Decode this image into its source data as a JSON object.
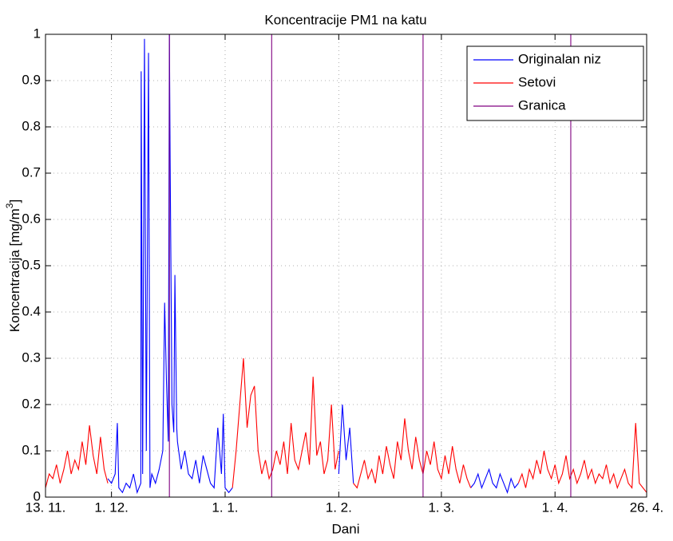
{
  "chart_data": {
    "type": "line",
    "title": "Koncentracije PM1 na katu",
    "x_label": "Dani",
    "y_label": {
      "text": "Koncentracija [mg/m",
      "sup": "3",
      "end": "]"
    },
    "xlim": [
      0,
      164
    ],
    "ylim": [
      0,
      1
    ],
    "xticks": [
      {
        "value": 0,
        "label": "13. 11."
      },
      {
        "value": 18,
        "label": "1. 12."
      },
      {
        "value": 49,
        "label": "1. 1."
      },
      {
        "value": 80,
        "label": "1. 2."
      },
      {
        "value": 108,
        "label": "1. 3."
      },
      {
        "value": 139,
        "label": "1. 4."
      },
      {
        "value": 164,
        "label": "26. 4."
      }
    ],
    "yticks": [
      0,
      0.1,
      0.2,
      0.3,
      0.4,
      0.5,
      0.6,
      0.7,
      0.8,
      0.9,
      1
    ],
    "grid": true,
    "legend": "top-right",
    "series": [
      {
        "name": "Originalan niz",
        "color": "#0000ff",
        "x": [
          17,
          18,
          19,
          19.6,
          20,
          21,
          22,
          23,
          24,
          25,
          26,
          26.1,
          26.5,
          27,
          27.5,
          28.1,
          28.5,
          29,
          30,
          31,
          32,
          32.5,
          33,
          33.5,
          33.8,
          34,
          34.5,
          35,
          35.3,
          35.8,
          36,
          37,
          38,
          39,
          40,
          41,
          42,
          43,
          44,
          45,
          46,
          47,
          48,
          48.5,
          49,
          50,
          51,
          null,
          80,
          81,
          82,
          83,
          84,
          null,
          116,
          117,
          118,
          119,
          120,
          121,
          122,
          123,
          124,
          125,
          126,
          127,
          128,
          129
        ],
        "values": [
          0.04,
          0.03,
          0.05,
          0.16,
          0.02,
          0.01,
          0.03,
          0.02,
          0.05,
          0.01,
          0.03,
          0.92,
          0.05,
          0.99,
          0.1,
          0.96,
          0.02,
          0.05,
          0.03,
          0.06,
          0.1,
          0.42,
          0.25,
          0.12,
          1,
          0.73,
          0.2,
          0.14,
          0.48,
          0.15,
          0.12,
          0.06,
          0.1,
          0.05,
          0.04,
          0.08,
          0.03,
          0.09,
          0.06,
          0.03,
          0.02,
          0.15,
          0.05,
          0.18,
          0.02,
          0.01,
          0.02,
          null,
          0.05,
          0.2,
          0.08,
          0.15,
          0.03,
          null,
          0.02,
          0.03,
          0.05,
          0.02,
          0.04,
          0.06,
          0.03,
          0.02,
          0.05,
          0.03,
          0.01,
          0.04,
          0.02,
          0.03
        ]
      },
      {
        "name": "Setovi",
        "color": "#ff0000",
        "x": [
          0,
          1,
          2,
          3,
          4,
          5,
          6,
          7,
          8,
          9,
          10,
          11,
          12,
          13,
          14,
          15,
          16,
          17,
          null,
          51,
          52,
          53,
          54,
          55,
          56,
          57,
          58,
          59,
          60,
          61,
          62,
          63,
          64,
          65,
          66,
          67,
          68,
          69,
          70,
          71,
          72,
          73,
          74,
          75,
          76,
          77,
          78,
          79,
          80,
          null,
          84,
          85,
          86,
          87,
          88,
          89,
          90,
          91,
          92,
          93,
          94,
          95,
          96,
          97,
          98,
          99,
          100,
          101,
          102,
          103,
          104,
          105,
          106,
          107,
          108,
          109,
          110,
          111,
          112,
          113,
          114,
          115,
          116,
          null,
          129,
          130,
          131,
          132,
          133,
          134,
          135,
          136,
          137,
          138,
          139,
          140,
          141,
          142,
          143,
          144,
          145,
          146,
          147,
          148,
          149,
          150,
          151,
          152,
          153,
          154,
          155,
          156,
          157,
          158,
          159,
          160,
          161,
          162,
          163,
          164
        ],
        "values": [
          0.02,
          0.05,
          0.04,
          0.07,
          0.03,
          0.06,
          0.1,
          0.05,
          0.08,
          0.06,
          0.12,
          0.07,
          0.155,
          0.09,
          0.05,
          0.13,
          0.06,
          0.03,
          null,
          0.02,
          0.1,
          0.2,
          0.3,
          0.15,
          0.22,
          0.24,
          0.1,
          0.05,
          0.08,
          0.04,
          0.06,
          0.1,
          0.07,
          0.12,
          0.05,
          0.16,
          0.08,
          0.06,
          0.1,
          0.14,
          0.07,
          0.26,
          0.09,
          0.12,
          0.05,
          0.08,
          0.2,
          0.06,
          0.1,
          null,
          0.03,
          0.02,
          0.05,
          0.08,
          0.04,
          0.06,
          0.03,
          0.09,
          0.05,
          0.11,
          0.07,
          0.04,
          0.12,
          0.08,
          0.17,
          0.1,
          0.06,
          0.13,
          0.08,
          0.05,
          0.1,
          0.07,
          0.12,
          0.06,
          0.04,
          0.09,
          0.05,
          0.11,
          0.06,
          0.03,
          0.07,
          0.04,
          0.02,
          null,
          0.03,
          0.05,
          0.02,
          0.06,
          0.04,
          0.08,
          0.05,
          0.1,
          0.06,
          0.04,
          0.07,
          0.03,
          0.05,
          0.09,
          0.04,
          0.06,
          0.03,
          0.05,
          0.08,
          0.04,
          0.06,
          0.03,
          0.05,
          0.04,
          0.07,
          0.03,
          0.05,
          0.02,
          0.04,
          0.06,
          0.03,
          0.02,
          0.16,
          0.03,
          0.02,
          0.01
        ]
      },
      {
        "name": "Granica",
        "color": "#800080",
        "x": [
          0,
          33.8,
          33.8,
          33.8,
          61.7,
          61.7,
          61.7,
          103,
          103,
          103,
          143.3,
          143.3,
          143.3,
          164
        ],
        "values": [
          0,
          0,
          1,
          0,
          0,
          1,
          0,
          0,
          1,
          0,
          0,
          1,
          0,
          0
        ]
      }
    ]
  }
}
